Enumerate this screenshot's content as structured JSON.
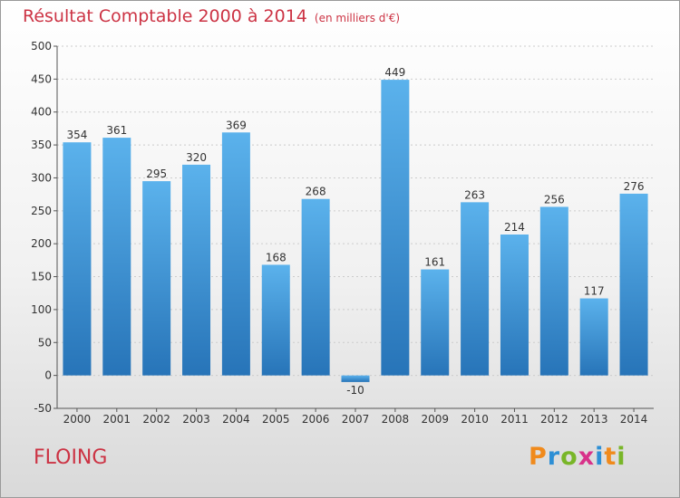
{
  "title": "Résultat Comptable 2000 à 2014",
  "subtitle": "(en milliers d'€)",
  "location": "FLOING",
  "logo": {
    "text": "Proxiti",
    "letters": [
      {
        "char": "P",
        "color": "#f08a1c"
      },
      {
        "char": "r",
        "color": "#2d8fd5"
      },
      {
        "char": "o",
        "color": "#79b628"
      },
      {
        "char": "x",
        "color": "#d8328a"
      },
      {
        "char": "i",
        "color": "#2d8fd5"
      },
      {
        "char": "t",
        "color": "#f08a1c"
      },
      {
        "char": "i",
        "color": "#79b628"
      }
    ]
  },
  "colors": {
    "bar_top": "#5bb2ec",
    "bar_bottom": "#2774b8",
    "title": "#cc3344",
    "grid": "#cccccc"
  },
  "chart_data": {
    "type": "bar",
    "title": "Résultat Comptable 2000 à 2014",
    "subtitle": "(en milliers d'€)",
    "xlabel": "",
    "ylabel": "",
    "categories": [
      "2000",
      "2001",
      "2002",
      "2003",
      "2004",
      "2005",
      "2006",
      "2007",
      "2008",
      "2009",
      "2010",
      "2011",
      "2012",
      "2013",
      "2014"
    ],
    "values": [
      354,
      361,
      295,
      320,
      369,
      168,
      268,
      -10,
      449,
      161,
      263,
      214,
      256,
      117,
      276
    ],
    "value_labels": [
      "354",
      "361",
      "295",
      "320",
      "369",
      "168",
      "268",
      "-10",
      "449",
      "161",
      "263",
      "214",
      "256",
      "117",
      "276"
    ],
    "ylim": [
      -50,
      500
    ],
    "yticks": [
      -50,
      0,
      50,
      100,
      150,
      200,
      250,
      300,
      350,
      400,
      450,
      500
    ],
    "grid": true,
    "legend": "none"
  }
}
